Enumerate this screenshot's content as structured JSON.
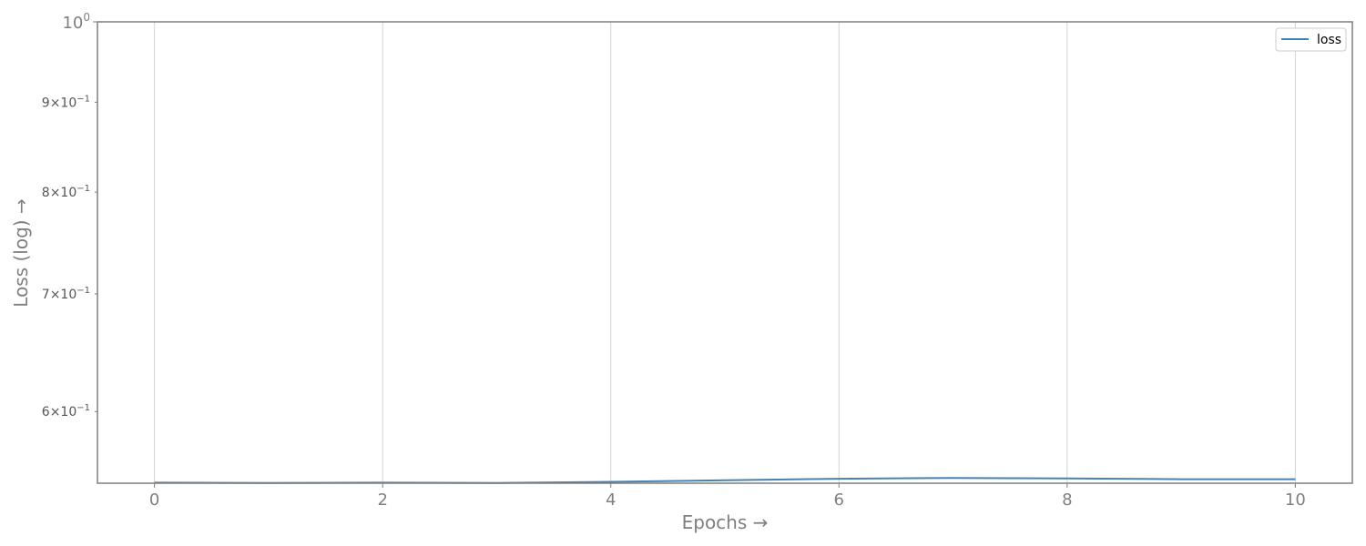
{
  "chart_data": {
    "type": "line",
    "xlabel": "Epochs →",
    "ylabel": "Loss (log) →",
    "yscale": "log",
    "xlim": [
      -0.5,
      10.5
    ],
    "ylim": [
      0.5462,
      1.0
    ],
    "grid": "x-major",
    "legend_position": "top-right",
    "x_ticks": [
      0,
      2,
      4,
      6,
      8,
      10
    ],
    "x_tick_labels": [
      "0",
      "2",
      "4",
      "6",
      "8",
      "10"
    ],
    "y_major_ticks": [
      {
        "value": 1.0,
        "base": "10",
        "exp": "0"
      }
    ],
    "y_minor_ticks": [
      {
        "value": 0.9,
        "mantissa": "9",
        "base": "10",
        "exp": "−1"
      },
      {
        "value": 0.8,
        "mantissa": "8",
        "base": "10",
        "exp": "−1"
      },
      {
        "value": 0.7,
        "mantissa": "7",
        "base": "10",
        "exp": "−1"
      },
      {
        "value": 0.6,
        "mantissa": "6",
        "base": "10",
        "exp": "−1"
      }
    ],
    "series": [
      {
        "name": "loss",
        "color": "#4682b4",
        "x": [
          0,
          1,
          2,
          3,
          4,
          5,
          6,
          7,
          8,
          9,
          10
        ],
        "values": [
          0.5466,
          0.5463,
          0.5466,
          0.5464,
          0.5472,
          0.5483,
          0.5494,
          0.55,
          0.5496,
          0.5491,
          0.5491
        ]
      }
    ]
  }
}
